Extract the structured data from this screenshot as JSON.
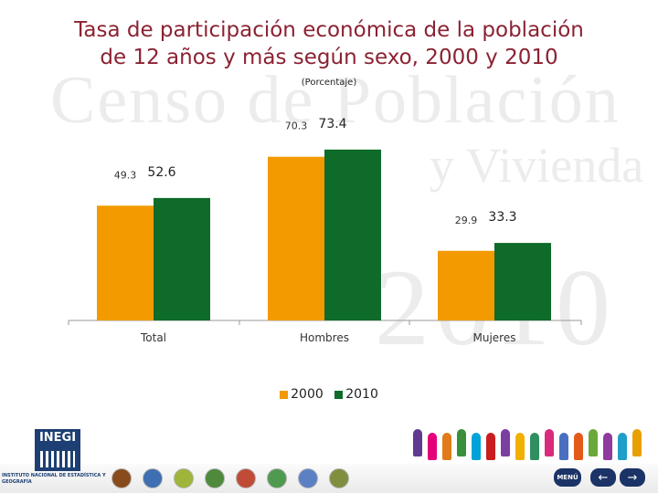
{
  "header": {
    "title_line1": "Tasa de participación económica de la población",
    "title_line2": "de 12 años y más según sexo, 2000 y 2010",
    "subtitle": "(Porcentaje)"
  },
  "watermark": {
    "line1": "Censo de Población",
    "line2": "y Vivienda",
    "line3": "2010"
  },
  "chart_data": {
    "type": "bar",
    "title": "Tasa de participación económica de la población de 12 años y más según sexo, 2000 y 2010",
    "subtitle": "(Porcentaje)",
    "categories": [
      "Total",
      "Hombres",
      "Mujeres"
    ],
    "series": [
      {
        "name": "2000",
        "values": [
          49.3,
          70.3,
          29.9
        ],
        "color": "#f39a00"
      },
      {
        "name": "2010",
        "values": [
          52.6,
          73.4,
          33.3
        ],
        "color": "#0e6b2a"
      }
    ],
    "data_labels": [
      [
        "49.3",
        "70.3",
        "29.9"
      ],
      [
        "52.6",
        "73.4",
        "33.3"
      ]
    ],
    "ylim": [
      0,
      80
    ],
    "grid": false,
    "legend_position": "bottom"
  },
  "footer": {
    "logo_text": "INEGI",
    "institution_text": "INSTITUTO NACIONAL DE ESTADÍSTICA Y GEOGRAFÍA",
    "menu_label": "MENÚ",
    "back_symbol": "←",
    "forward_symbol": "→",
    "nav_color": "#1b3366",
    "theme_icon_colors": [
      "#8a4b1c",
      "#3f6fb3",
      "#9fb43a",
      "#4f8a3c",
      "#c04c38",
      "#4f9a4f",
      "#5c80c4",
      "#7f8f3f"
    ],
    "people_colors": [
      "#5f3a8f",
      "#e3007a",
      "#e07b19",
      "#3a8f3a",
      "#00a3d8",
      "#c81e1e",
      "#7a3fa0",
      "#f1b000",
      "#2f8f5f",
      "#d92a7b",
      "#4a6fc1",
      "#e35a1a",
      "#6aa83a",
      "#8f3a9f",
      "#1f9fc8",
      "#e8a000"
    ]
  }
}
